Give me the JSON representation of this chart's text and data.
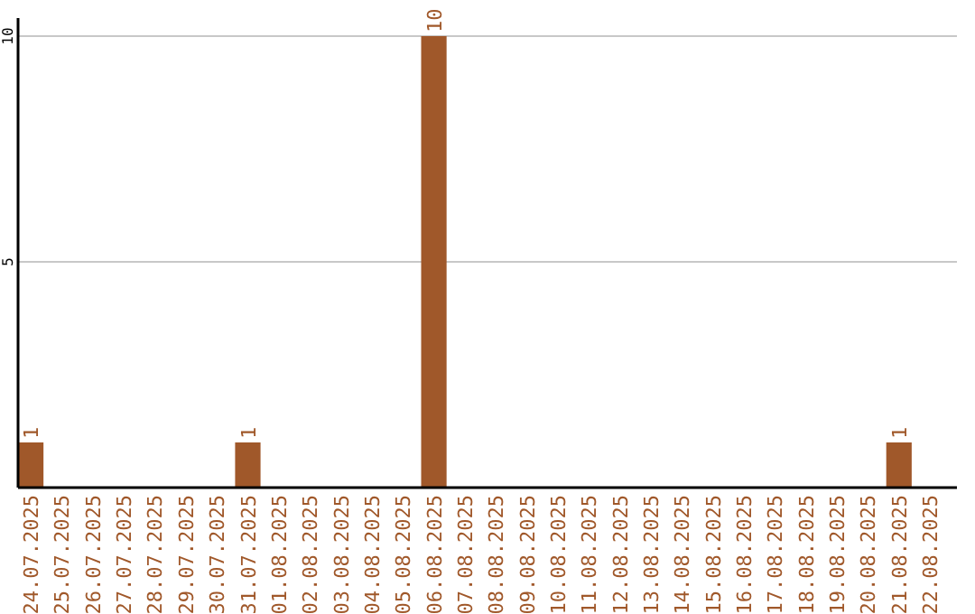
{
  "chart_data": {
    "type": "bar",
    "categories": [
      "24.07.2025",
      "25.07.2025",
      "26.07.2025",
      "27.07.2025",
      "28.07.2025",
      "29.07.2025",
      "30.07.2025",
      "31.07.2025",
      "01.08.2025",
      "02.08.2025",
      "03.08.2025",
      "04.08.2025",
      "05.08.2025",
      "06.08.2025",
      "07.08.2025",
      "08.08.2025",
      "09.08.2025",
      "10.08.2025",
      "11.08.2025",
      "12.08.2025",
      "13.08.2025",
      "14.08.2025",
      "15.08.2025",
      "16.08.2025",
      "17.08.2025",
      "18.08.2025",
      "19.08.2025",
      "20.08.2025",
      "21.08.2025",
      "22.08.2025"
    ],
    "values": [
      1,
      0,
      0,
      0,
      0,
      0,
      0,
      1,
      0,
      0,
      0,
      0,
      0,
      10,
      0,
      0,
      0,
      0,
      0,
      0,
      0,
      0,
      0,
      0,
      0,
      0,
      0,
      0,
      1,
      0
    ],
    "value_labels": [
      "1",
      null,
      null,
      null,
      null,
      null,
      null,
      "1",
      null,
      null,
      null,
      null,
      null,
      "10",
      null,
      null,
      null,
      null,
      null,
      null,
      null,
      null,
      null,
      null,
      null,
      null,
      null,
      null,
      "1",
      null
    ],
    "color": "#a0582a",
    "ylim": [
      0,
      10.4
    ],
    "yticks": [
      5,
      10
    ],
    "grid": "y"
  }
}
